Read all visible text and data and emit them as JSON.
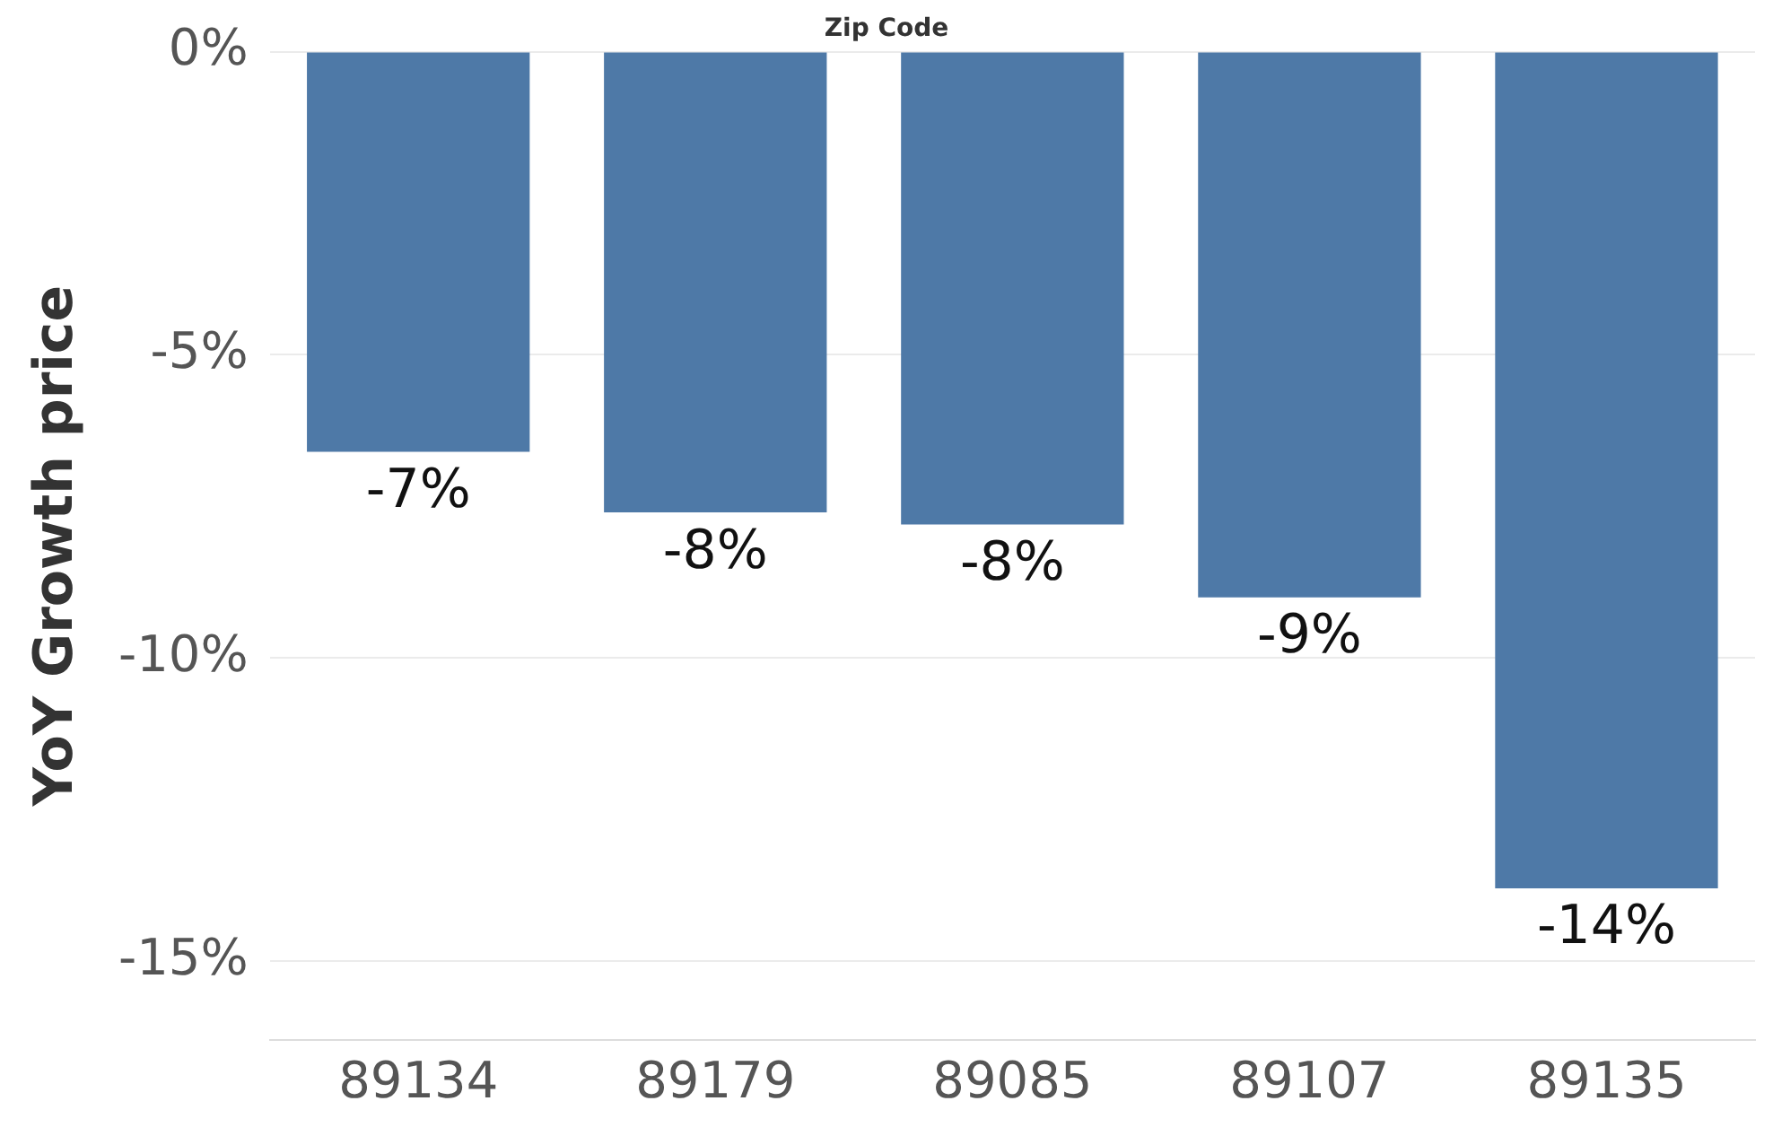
{
  "chart_data": {
    "type": "bar",
    "xlabel": "Zip Code",
    "ylabel": "YoY Growth price",
    "categories": [
      "89134",
      "89179",
      "89085",
      "89107",
      "89135"
    ],
    "values": [
      -6.6,
      -7.6,
      -7.8,
      -9.0,
      -13.8
    ],
    "value_labels": [
      "-7%",
      "-8%",
      "-8%",
      "-9%",
      "-14%"
    ],
    "color": "#4e79a7",
    "ylim": [
      -16.3,
      0
    ],
    "yticks": [
      {
        "value": 0,
        "label": "0%"
      },
      {
        "value": -5,
        "label": "-5%"
      },
      {
        "value": -10,
        "label": "-10%"
      },
      {
        "value": -15,
        "label": "-15%"
      }
    ],
    "grid": "y"
  }
}
